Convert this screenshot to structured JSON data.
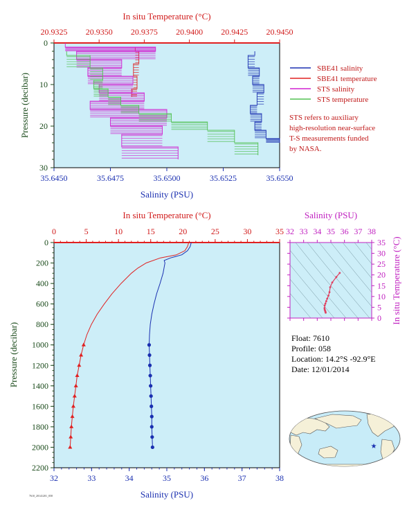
{
  "chart_data": [
    {
      "type": "line",
      "top_axis_label": "In situ Temperature (°C)",
      "xlabel": "Salinity (PSU)",
      "ylabel": "Pressure (decibar)",
      "top_ticks": [
        "20.9325",
        "20.9350",
        "20.9375",
        "20.9400",
        "20.9425",
        "20.9450"
      ],
      "top_range": [
        20.9325,
        20.945
      ],
      "bottom_ticks": [
        "35.6450",
        "35.6475",
        "35.6500",
        "35.6525",
        "35.6550"
      ],
      "bottom_range": [
        35.645,
        35.655
      ],
      "y_ticks": [
        "0",
        "10",
        "20",
        "30"
      ],
      "ylim": [
        0,
        30
      ],
      "legend_position": "right",
      "series": [
        {
          "name": "SBE41 salinity",
          "color": "#1a2fb0",
          "axis": "bottom",
          "x": [
            35.6539,
            35.6536,
            35.6541,
            35.6538,
            35.6543,
            35.654,
            35.6537,
            35.6542,
            35.6539,
            35.6544,
            35.655
          ],
          "y": [
            3,
            6,
            8,
            10,
            12,
            15,
            17,
            19,
            21,
            23,
            24
          ]
        },
        {
          "name": "SBE41 temperature",
          "color": "#e02020",
          "axis": "top",
          "x": [
            20.937,
            20.9372,
            20.9369,
            20.9371,
            20.9368
          ],
          "y": [
            2,
            5,
            8,
            11,
            13
          ]
        },
        {
          "name": "STS salinity",
          "color": "#d020d0",
          "axis": "bottom",
          "x": [
            35.6455,
            35.6495,
            35.646,
            35.648,
            35.6465,
            35.6485,
            35.647,
            35.649,
            35.6466,
            35.65,
            35.6475,
            35.6498,
            35.648,
            35.6505
          ],
          "y": [
            1,
            2,
            4,
            6,
            8,
            10,
            12,
            14,
            16,
            18,
            20,
            22,
            25,
            28
          ]
        },
        {
          "name": "STS temperature",
          "color": "#50c050",
          "axis": "top",
          "x": [
            20.9332,
            20.9345,
            20.9352,
            20.9347,
            20.9355,
            20.9362,
            20.9372,
            20.939,
            20.941,
            20.9425,
            20.9438
          ],
          "y": [
            3,
            6,
            9,
            11,
            13,
            15,
            17,
            19,
            21,
            24,
            27
          ]
        }
      ],
      "annotation": [
        "STS refers to auxiliary",
        "high-resolution near-surface",
        "T-S measurements funded",
        "by NASA."
      ]
    },
    {
      "type": "line",
      "top_axis_label": "In situ Temperature (°C)",
      "xlabel": "Salinity (PSU)",
      "ylabel": "Pressure (decibar)",
      "top_ticks": [
        "0",
        "5",
        "10",
        "15",
        "20",
        "25",
        "30",
        "35"
      ],
      "top_range": [
        0,
        35
      ],
      "bottom_ticks": [
        "32",
        "33",
        "34",
        "35",
        "36",
        "37",
        "38"
      ],
      "bottom_range": [
        32,
        38
      ],
      "y_ticks": [
        "0",
        "200",
        "400",
        "600",
        "800",
        "1000",
        "1200",
        "1400",
        "1600",
        "1800",
        "2000",
        "2200"
      ],
      "ylim": [
        0,
        2200
      ],
      "series": [
        {
          "name": "temperature",
          "color": "#e02020",
          "axis": "top",
          "pressure": [
            0,
            40,
            80,
            120,
            150,
            200,
            250,
            300,
            400,
            500,
            600,
            700,
            800,
            900,
            1000,
            1100,
            1200,
            1300,
            1400,
            1500,
            1600,
            1700,
            1800,
            1900,
            2000
          ],
          "values": [
            20.9,
            20.7,
            20.3,
            19.0,
            16.5,
            14.3,
            13.0,
            12.0,
            10.4,
            9.0,
            7.8,
            6.7,
            5.8,
            5.1,
            4.6,
            4.2,
            3.9,
            3.6,
            3.4,
            3.2,
            3.0,
            2.85,
            2.7,
            2.6,
            2.5
          ],
          "marker": "triangle",
          "markers_from": 1000
        },
        {
          "name": "salinity",
          "color": "#1a2fb0",
          "axis": "bottom",
          "pressure": [
            0,
            40,
            80,
            120,
            150,
            175,
            200,
            300,
            400,
            500,
            600,
            700,
            800,
            900,
            1000,
            1100,
            1200,
            1300,
            1400,
            1500,
            1600,
            1700,
            1800,
            1900,
            2000
          ],
          "values": [
            35.65,
            35.62,
            35.55,
            35.4,
            35.1,
            34.93,
            34.95,
            34.9,
            34.82,
            34.73,
            34.66,
            34.6,
            34.56,
            34.54,
            34.53,
            34.54,
            34.55,
            34.56,
            34.57,
            34.58,
            34.59,
            34.6,
            34.6,
            34.61,
            34.62
          ],
          "marker": "circle",
          "markers_from": 1000
        }
      ]
    },
    {
      "type": "scatter",
      "top_axis_label": "Salinity (PSU)",
      "right_axis_label": "In situ Temperature (°C)",
      "x_ticks": [
        "32",
        "33",
        "34",
        "35",
        "36",
        "37",
        "38"
      ],
      "xlim": [
        32,
        38
      ],
      "y_ticks": [
        "0",
        "5",
        "10",
        "15",
        "20",
        "25",
        "30",
        "35"
      ],
      "ylim": [
        0,
        35
      ],
      "series": [
        {
          "name": "T-S",
          "color": "#e04060",
          "x": [
            35.65,
            35.4,
            35.1,
            34.95,
            34.9,
            34.82,
            34.73,
            34.66,
            34.6,
            34.55,
            34.53,
            34.55,
            34.58,
            34.6,
            34.62
          ],
          "y": [
            20.9,
            19.0,
            16.5,
            14.3,
            12.0,
            10.4,
            9.0,
            7.8,
            6.7,
            5.8,
            4.6,
            3.9,
            3.4,
            3.0,
            2.5
          ]
        }
      ]
    }
  ],
  "info": {
    "float": "Float:  7610",
    "profile": "Profile:  058",
    "location": "Location:  14.2°S  -92.9°E",
    "date": "Date:  12/01/2014"
  },
  "footer_text": "7610_20141201_058",
  "colors": {
    "plot_bg": "#cdeef8",
    "temperature": "#e02020",
    "salinity": "#1a2fb0",
    "sts_salinity": "#d020d0",
    "sts_temperature": "#50c050",
    "ts_axis": "#c020c0",
    "axis_text": "#2a2aa0",
    "pressure_text": "#1a4a1a"
  },
  "icons": {
    "float_marker": "star-icon",
    "map": "world-map-icon"
  }
}
